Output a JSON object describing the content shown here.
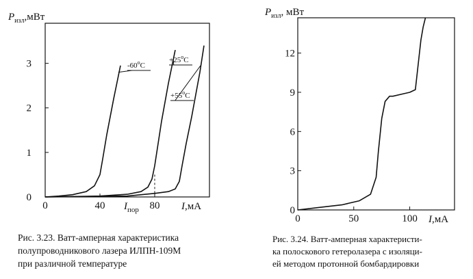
{
  "chart_data": [
    {
      "type": "line",
      "ylabel_main": "P",
      "ylabel_sub": "изл",
      "ylabel_unit": ",мВт",
      "xlabel": "I,мА",
      "threshold_label_main": "I",
      "threshold_label_sub": "пор",
      "xlim": [
        0,
        120
      ],
      "ylim": [
        0,
        3.9
      ],
      "x_ticks": [
        "0",
        "40",
        "80"
      ],
      "y_ticks": [
        "0",
        "1",
        "2",
        "3"
      ],
      "threshold_x": 80,
      "series": [
        {
          "name": "-60°C",
          "label_base": "-60",
          "label_sup": "o",
          "label_unit": "C",
          "x": [
            0,
            10,
            20,
            30,
            36,
            40,
            42,
            45,
            50,
            55
          ],
          "y": [
            0,
            0.02,
            0.05,
            0.12,
            0.25,
            0.5,
            0.85,
            1.4,
            2.2,
            2.95
          ]
        },
        {
          "name": "+25°C",
          "label_base": "+25",
          "label_sup": "o",
          "label_unit": "C",
          "x": [
            0,
            40,
            60,
            70,
            75,
            78,
            80,
            82,
            85,
            90,
            95
          ],
          "y": [
            0,
            0.02,
            0.06,
            0.12,
            0.22,
            0.4,
            0.7,
            1.1,
            1.7,
            2.55,
            3.3
          ]
        },
        {
          "name": "+55°C",
          "label_base": "+55",
          "label_sup": "o",
          "label_unit": "C",
          "x": [
            0,
            60,
            80,
            90,
            95,
            98,
            100,
            103,
            107,
            113,
            116
          ],
          "y": [
            0,
            0.02,
            0.08,
            0.12,
            0.18,
            0.35,
            0.7,
            1.2,
            1.8,
            2.8,
            3.4
          ]
        }
      ]
    },
    {
      "type": "line",
      "ylabel_main": "P",
      "ylabel_sub": "изл",
      "ylabel_unit": ", мВт",
      "xlabel": "I,мА",
      "xlim": [
        0,
        140
      ],
      "ylim": [
        0,
        14.7
      ],
      "x_ticks": [
        "0",
        "50",
        "100"
      ],
      "y_ticks": [
        "0",
        "3",
        "6",
        "9",
        "12"
      ],
      "series": [
        {
          "x": [
            0,
            20,
            40,
            55,
            65,
            70,
            72,
            75,
            78,
            82,
            85,
            95,
            100,
            105,
            108,
            110,
            112,
            114
          ],
          "y": [
            0,
            0.2,
            0.4,
            0.7,
            1.2,
            2.5,
            4.5,
            7.0,
            8.3,
            8.7,
            8.7,
            8.9,
            9.0,
            9.2,
            11.5,
            13.0,
            14.0,
            15.0
          ]
        }
      ]
    }
  ],
  "captions": {
    "fig1": [
      "Рис. 3.23. Ватт-амперная характеристика",
      "полупроводникового лазера ИЛПН-109М",
      "при различной температуре"
    ],
    "fig2": [
      "Рис. 3.24. Ватт-амперная характеристи-",
      "ка полоскового гетеролазера с изоляци-",
      "ей методом протонной бомбардировки"
    ]
  }
}
